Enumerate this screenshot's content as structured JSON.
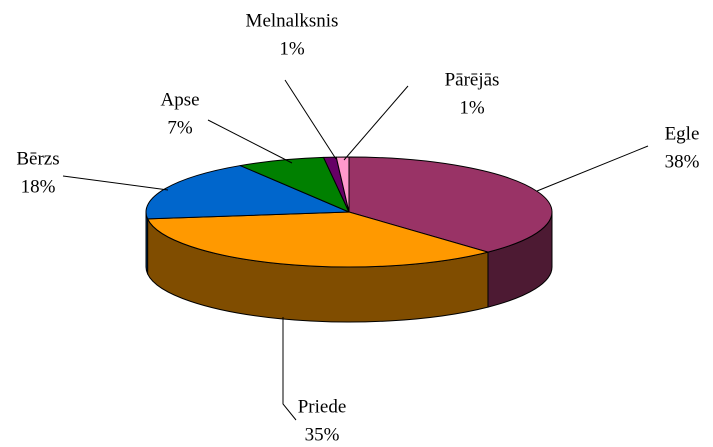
{
  "chart_data": {
    "type": "pie",
    "categories": [
      "Egle",
      "Priede",
      "Bērzs",
      "Apse",
      "Melnalksnis",
      "Pārējās"
    ],
    "values": [
      38,
      35,
      18,
      7,
      1,
      1
    ],
    "value_labels": [
      "38%",
      "35%",
      "18%",
      "7%",
      "1%",
      "1%"
    ],
    "colors": [
      "#993366",
      "#ff9900",
      "#0066cc",
      "#008000",
      "#660066",
      "#ff99cc"
    ]
  }
}
